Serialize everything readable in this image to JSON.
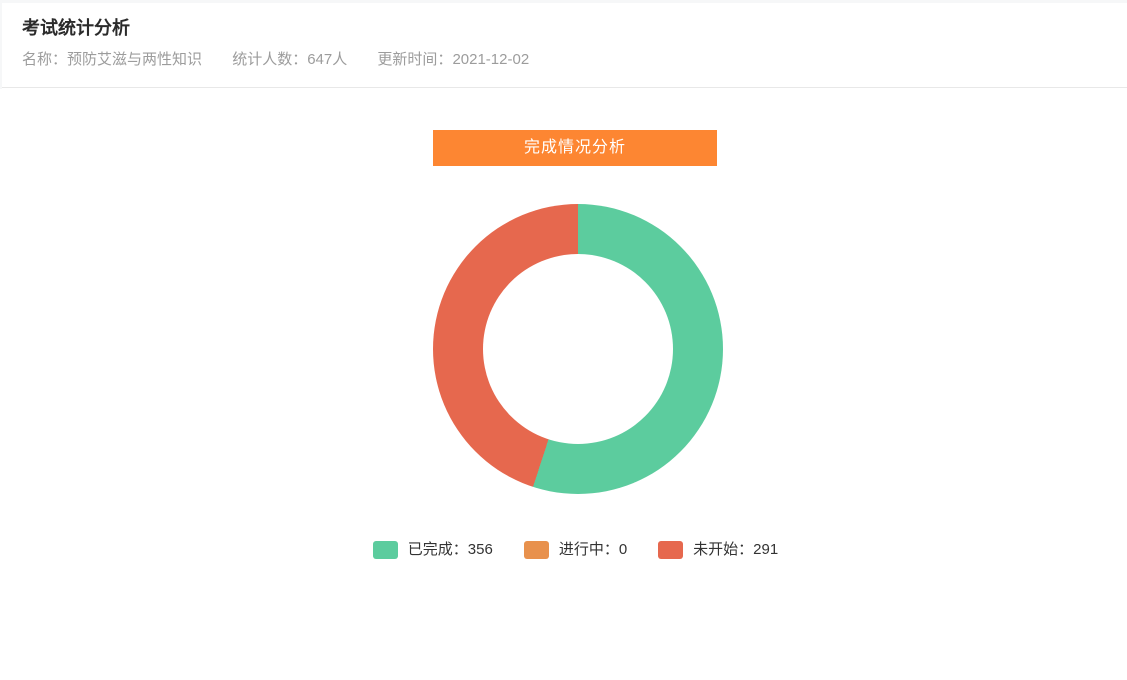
{
  "header": {
    "title": "考试统计分析",
    "meta": [
      {
        "label": "名称：",
        "value": "预防艾滋与两性知识"
      },
      {
        "label": "统计人数：",
        "value": "647人"
      },
      {
        "label": "更新时间：",
        "value": "2021-12-02"
      }
    ]
  },
  "banner": {
    "label": "完成情况分析",
    "color": "#fd8632"
  },
  "chart_data": {
    "type": "pie",
    "variant": "donut",
    "title": "完成情况分析",
    "start_angle_deg": 0,
    "direction": "clockwise",
    "total": 647,
    "inner_radius_px": 95,
    "outer_radius_px": 145,
    "legend_position": "bottom",
    "slices": [
      {
        "label": "已完成",
        "value": 356,
        "display": "已完成：356",
        "color": "#5ccc9e"
      },
      {
        "label": "进行中",
        "value": 0,
        "display": "进行中：0",
        "color": "#e8914d"
      },
      {
        "label": "未开始",
        "value": 291,
        "display": "未开始：291",
        "color": "#e6684e"
      }
    ]
  }
}
